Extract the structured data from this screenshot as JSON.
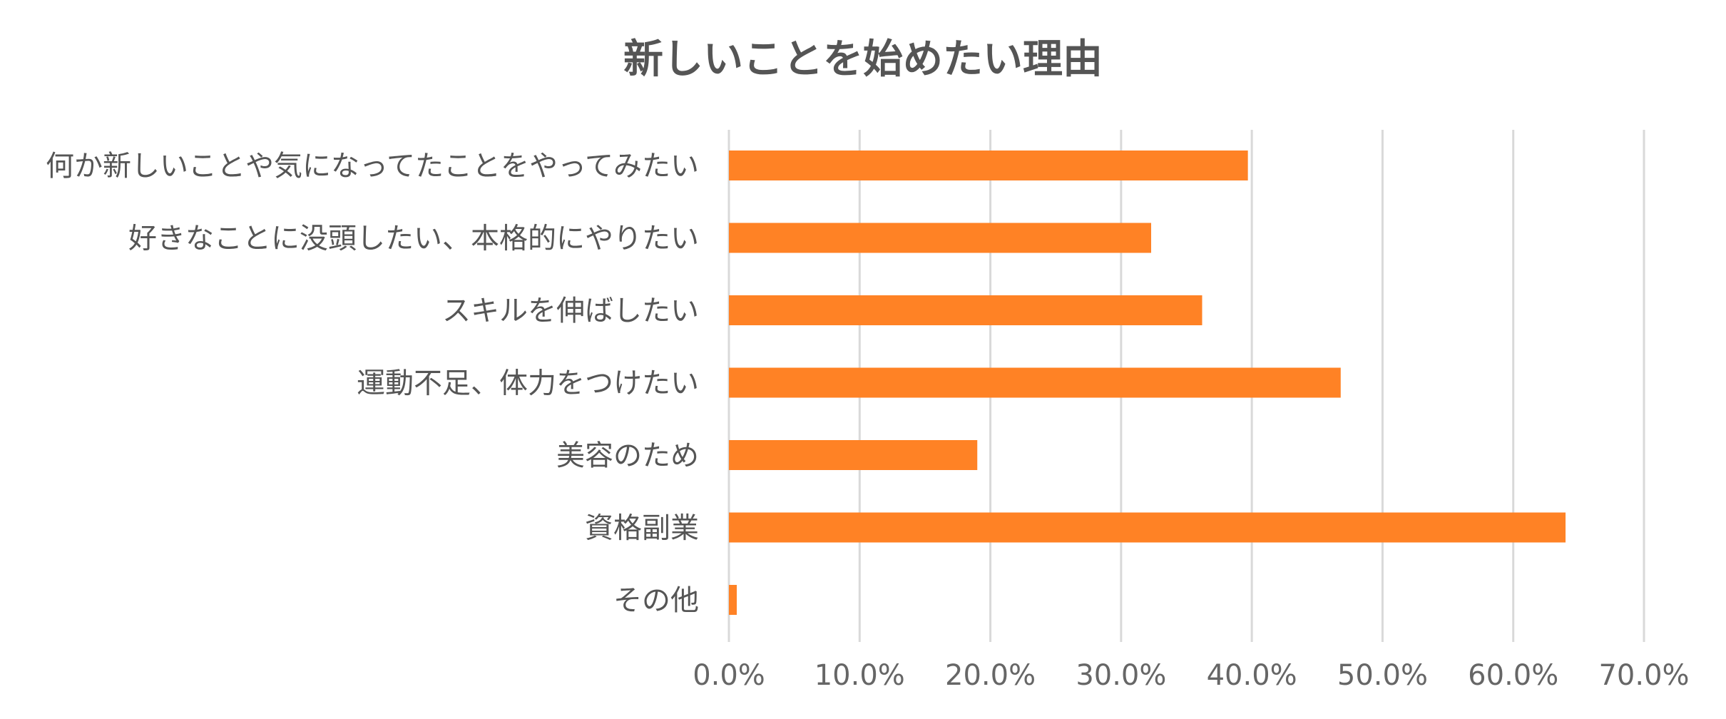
{
  "chart_data": {
    "type": "bar",
    "orientation": "horizontal",
    "title": "新しいことを始めたい理由",
    "xlabel": "",
    "ylabel": "",
    "categories": [
      "何か新しいことや気になってたことをやってみたい",
      "好きなことに没頭したい、本格的にやりたい",
      "スキルを伸ばしたい",
      "運動不足、体力をつけたい",
      "美容のため",
      "資格副業",
      "その他"
    ],
    "values": [
      39.7,
      32.3,
      36.2,
      46.8,
      19.0,
      64.0,
      0.6
    ],
    "xlim": [
      0,
      70
    ],
    "x_ticks": [
      "0.0%",
      "10.0%",
      "20.0%",
      "30.0%",
      "40.0%",
      "50.0%",
      "60.0%",
      "70.0%"
    ],
    "grid": "vertical",
    "legend": "none",
    "bar_color": "#FF8225",
    "text_color": "#555555",
    "grid_color": "#d9d9d9"
  }
}
